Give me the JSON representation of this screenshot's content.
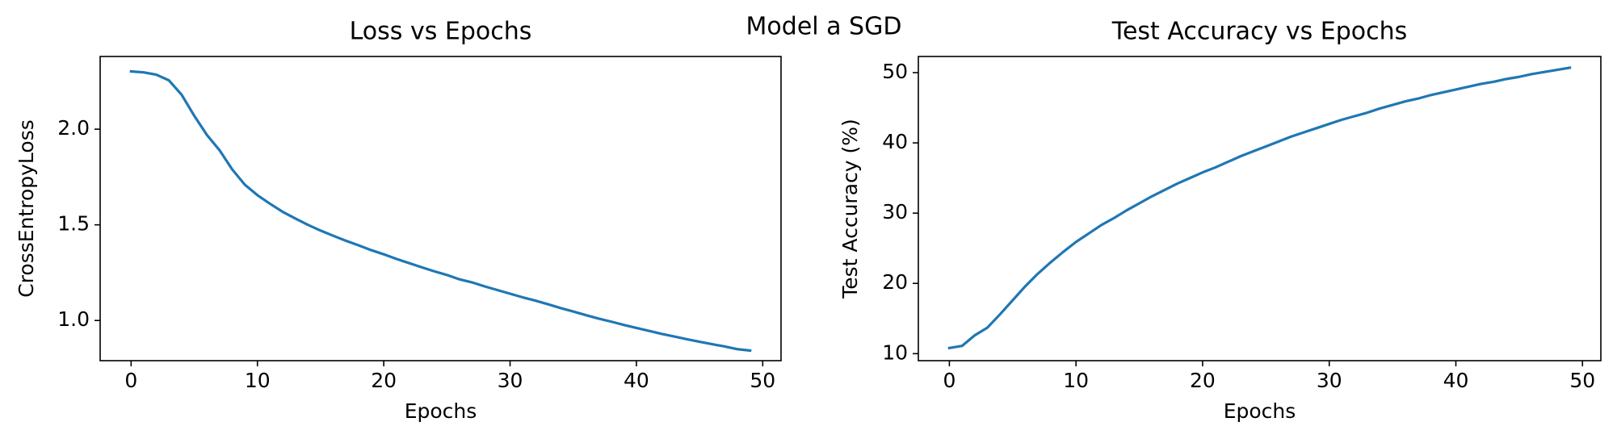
{
  "figure": {
    "suptitle": "Model a SGD"
  },
  "chart_data": [
    {
      "type": "line",
      "title": "Loss vs Epochs",
      "xlabel": "Epochs",
      "ylabel": "CrossEntropyLoss",
      "xlim": [
        -2.45,
        51.45
      ],
      "ylim": [
        0.79,
        2.38
      ],
      "xticks": [
        0,
        10,
        20,
        30,
        40,
        50
      ],
      "yticks": [
        1.0,
        1.5,
        2.0
      ],
      "xtick_labels": [
        "0",
        "10",
        "20",
        "30",
        "40",
        "50"
      ],
      "ytick_labels": [
        "1.0",
        "1.5",
        "2.0"
      ],
      "grid": false,
      "color": "#1f77b4",
      "x": [
        0,
        1,
        2,
        3,
        4,
        5,
        6,
        7,
        8,
        9,
        10,
        11,
        12,
        13,
        14,
        15,
        16,
        17,
        18,
        19,
        20,
        21,
        22,
        23,
        24,
        25,
        26,
        27,
        28,
        29,
        30,
        31,
        32,
        33,
        34,
        35,
        36,
        37,
        38,
        39,
        40,
        41,
        42,
        43,
        44,
        45,
        46,
        47,
        48,
        49
      ],
      "y": [
        2.302,
        2.297,
        2.285,
        2.255,
        2.18,
        2.07,
        1.97,
        1.89,
        1.79,
        1.71,
        1.655,
        1.61,
        1.568,
        1.533,
        1.5,
        1.47,
        1.443,
        1.417,
        1.393,
        1.368,
        1.346,
        1.322,
        1.3,
        1.278,
        1.257,
        1.238,
        1.215,
        1.199,
        1.178,
        1.159,
        1.14,
        1.121,
        1.104,
        1.085,
        1.065,
        1.047,
        1.028,
        1.01,
        0.994,
        0.977,
        0.961,
        0.946,
        0.93,
        0.916,
        0.902,
        0.889,
        0.876,
        0.864,
        0.85,
        0.843
      ]
    },
    {
      "type": "line",
      "title": "Test Accuracy vs Epochs",
      "xlabel": "Epochs",
      "ylabel": "Test Accuracy (%)",
      "xlim": [
        -2.45,
        51.45
      ],
      "ylim": [
        9.0,
        52.3
      ],
      "xticks": [
        0,
        10,
        20,
        30,
        40,
        50
      ],
      "yticks": [
        10,
        20,
        30,
        40,
        50
      ],
      "xtick_labels": [
        "0",
        "10",
        "20",
        "30",
        "40",
        "50"
      ],
      "ytick_labels": [
        "10",
        "20",
        "30",
        "40",
        "50"
      ],
      "grid": false,
      "color": "#1f77b4",
      "x": [
        0,
        1,
        2,
        3,
        4,
        5,
        6,
        7,
        8,
        9,
        10,
        11,
        12,
        13,
        14,
        15,
        16,
        17,
        18,
        19,
        20,
        21,
        22,
        23,
        24,
        25,
        26,
        27,
        28,
        29,
        30,
        31,
        32,
        33,
        34,
        35,
        36,
        37,
        38,
        39,
        40,
        41,
        42,
        43,
        44,
        45,
        46,
        47,
        48,
        49
      ],
      "y": [
        10.8,
        11.1,
        12.6,
        13.7,
        15.6,
        17.6,
        19.6,
        21.4,
        23.0,
        24.5,
        25.9,
        27.1,
        28.3,
        29.3,
        30.4,
        31.4,
        32.4,
        33.3,
        34.2,
        35.0,
        35.8,
        36.5,
        37.3,
        38.1,
        38.8,
        39.5,
        40.2,
        40.9,
        41.5,
        42.1,
        42.7,
        43.3,
        43.8,
        44.3,
        44.9,
        45.4,
        45.9,
        46.3,
        46.8,
        47.2,
        47.6,
        48.0,
        48.4,
        48.7,
        49.1,
        49.4,
        49.8,
        50.1,
        50.4,
        50.7
      ]
    }
  ]
}
